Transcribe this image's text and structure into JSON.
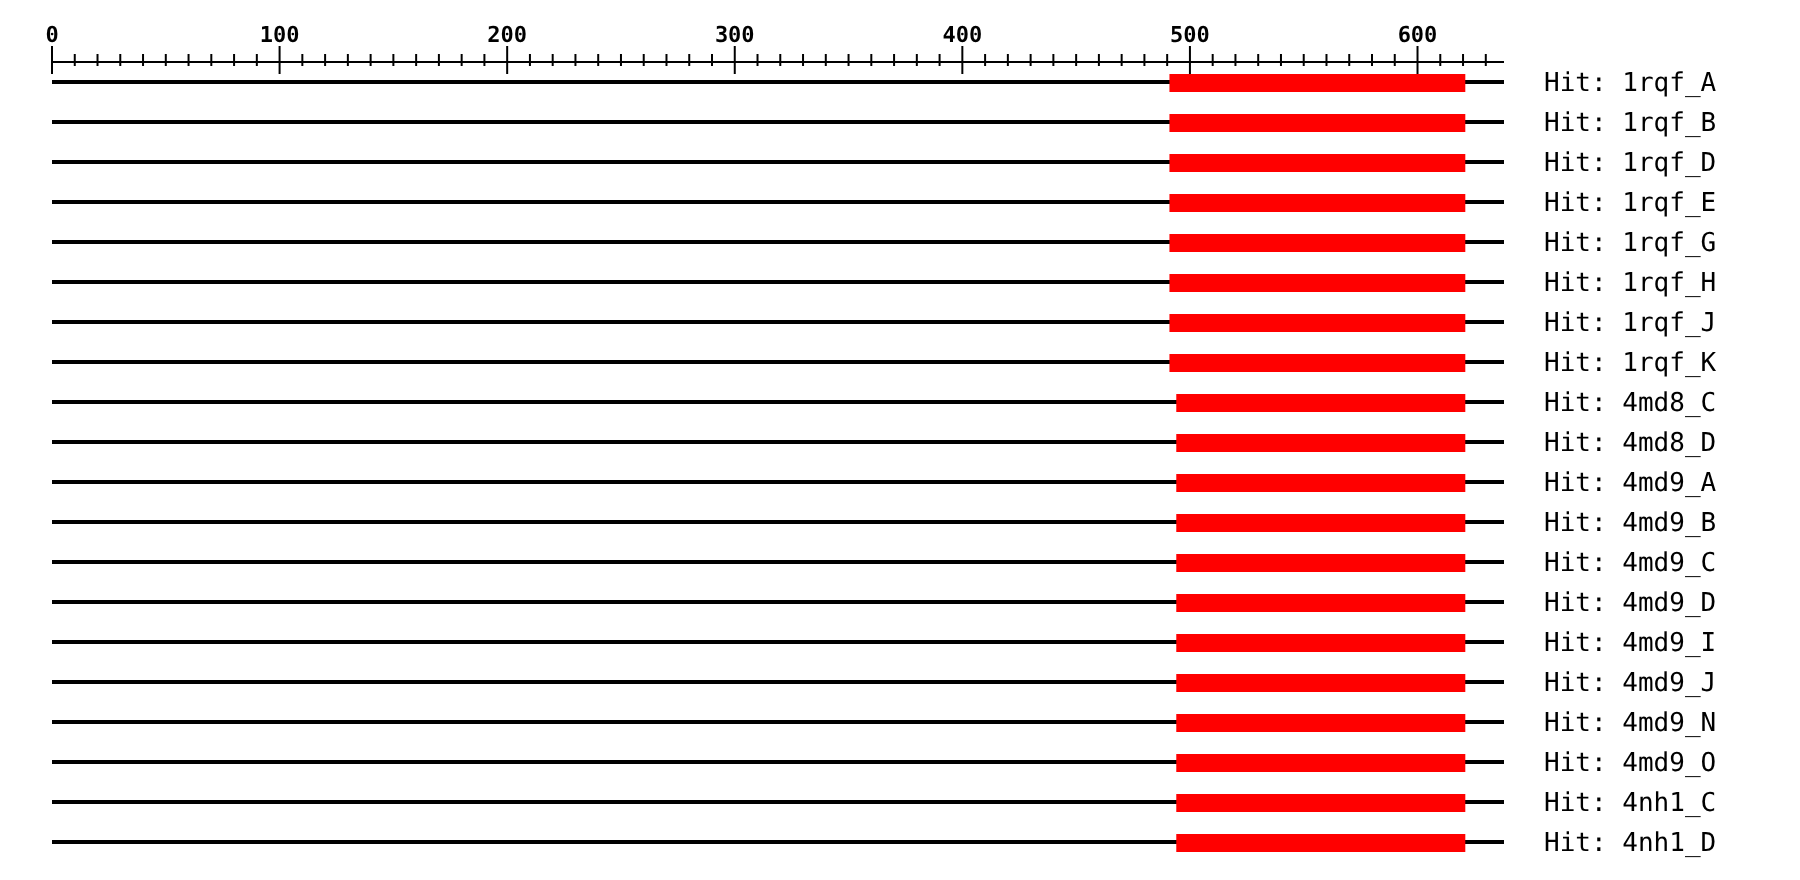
{
  "chart_data": {
    "type": "bar",
    "orientation": "horizontal",
    "categories": [
      "Hit: 1rqf_A",
      "Hit: 1rqf_B",
      "Hit: 1rqf_D",
      "Hit: 1rqf_E",
      "Hit: 1rqf_G",
      "Hit: 1rqf_H",
      "Hit: 1rqf_J",
      "Hit: 1rqf_K",
      "Hit: 4md8_C",
      "Hit: 4md8_D",
      "Hit: 4md9_A",
      "Hit: 4md9_B",
      "Hit: 4md9_C",
      "Hit: 4md9_D",
      "Hit: 4md9_I",
      "Hit: 4md9_J",
      "Hit: 4md9_N",
      "Hit: 4md9_O",
      "Hit: 4nh1_C",
      "Hit: 4nh1_D"
    ],
    "series": [
      {
        "color": "#000000",
        "base": [
          0,
          0,
          0,
          0,
          0,
          0,
          0,
          0,
          0,
          0,
          0,
          0,
          0,
          0,
          0,
          0,
          0,
          0,
          0,
          0
        ],
        "values": [
          638,
          638,
          638,
          638,
          638,
          638,
          638,
          638,
          638,
          638,
          638,
          638,
          638,
          638,
          638,
          638,
          638,
          638,
          638,
          638
        ]
      },
      {
        "color": "#ff0000",
        "base": [
          491,
          491,
          491,
          491,
          491,
          491,
          491,
          491,
          494,
          494,
          494,
          494,
          494,
          494,
          494,
          494,
          494,
          494,
          494,
          494
        ],
        "values": [
          130,
          130,
          130,
          130,
          130,
          130,
          130,
          130,
          127,
          127,
          127,
          127,
          127,
          127,
          127,
          127,
          127,
          127,
          127,
          127
        ]
      }
    ],
    "xlim": [
      0,
      638
    ],
    "xticks": [
      0,
      {
        "value": 10,
        "label": null
      },
      {
        "value": 20,
        "label": null
      },
      {
        "value": 30,
        "label": null
      },
      {
        "value": 40,
        "label": null
      },
      {
        "value": 50,
        "label": null
      },
      {
        "value": 60,
        "label": null
      },
      {
        "value": 70,
        "label": null
      },
      {
        "value": 80,
        "label": null
      },
      {
        "value": 90,
        "label": null
      },
      100,
      {
        "value": 110,
        "label": null
      },
      {
        "value": 120,
        "label": null
      },
      {
        "value": 130,
        "label": null
      },
      {
        "value": 140,
        "label": null
      },
      {
        "value": 150,
        "label": null
      },
      {
        "value": 160,
        "label": null
      },
      {
        "value": 170,
        "label": null
      },
      {
        "value": 180,
        "label": null
      },
      {
        "value": 190,
        "label": null
      },
      200,
      {
        "value": 210,
        "label": null
      },
      {
        "value": 220,
        "label": null
      },
      {
        "value": 230,
        "label": null
      },
      {
        "value": 240,
        "label": null
      },
      {
        "value": 250,
        "label": null
      },
      {
        "value": 260,
        "label": null
      },
      {
        "value": 270,
        "label": null
      },
      {
        "value": 280,
        "label": null
      },
      {
        "value": 290,
        "label": null
      },
      300,
      {
        "value": 310,
        "label": null
      },
      {
        "value": 320,
        "label": null
      },
      {
        "value": 330,
        "label": null
      },
      {
        "value": 340,
        "label": null
      },
      {
        "value": 350,
        "label": null
      },
      {
        "value": 360,
        "label": null
      },
      {
        "value": 370,
        "label": null
      },
      {
        "value": 380,
        "label": null
      },
      {
        "value": 390,
        "label": null
      },
      400,
      {
        "value": 410,
        "label": null
      },
      {
        "value": 420,
        "label": null
      },
      {
        "value": 430,
        "label": null
      },
      {
        "value": 440,
        "label": null
      },
      {
        "value": 450,
        "label": null
      },
      {
        "value": 460,
        "label": null
      },
      {
        "value": 470,
        "label": null
      },
      {
        "value": 480,
        "label": null
      },
      {
        "value": 490,
        "label": null
      },
      500,
      {
        "value": 510,
        "label": null
      },
      {
        "value": 520,
        "label": null
      },
      {
        "value": 530,
        "label": null
      },
      {
        "value": 540,
        "label": null
      },
      {
        "value": 550,
        "label": null
      },
      {
        "value": 560,
        "label": null
      },
      {
        "value": 570,
        "label": null
      },
      {
        "value": 580,
        "label": null
      },
      {
        "value": 590,
        "label": null
      },
      600,
      {
        "value": 610,
        "label": null
      },
      {
        "value": 620,
        "label": null
      },
      {
        "value": 630,
        "label": null
      }
    ]
  }
}
